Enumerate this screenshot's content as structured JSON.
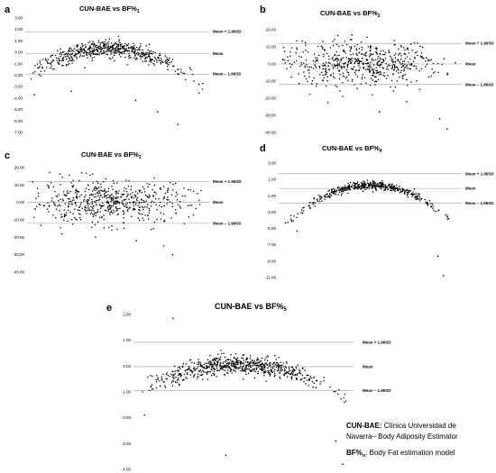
{
  "chart_data": [
    {
      "type": "scatter",
      "letter": "a",
      "title": "CUN-BAE vs BF%",
      "subscript": "1",
      "yticks": [
        "3.00",
        "2.00",
        "1.00",
        "0.00",
        "-1.00",
        "-2.00",
        "-3.00",
        "-4.00",
        "-5.00",
        "-6.00",
        "-7.00"
      ],
      "ylim": [
        -7,
        3
      ],
      "ref_lines": [
        {
          "label": "Mean + 1.96SD",
          "value": 1.8
        },
        {
          "label": "Mean",
          "value": -0.1
        },
        {
          "label": "Mean – 1.96SD",
          "value": -1.9
        }
      ],
      "cluster": {
        "x_center": 0.45,
        "y_center": 0.3,
        "spread_x": 0.22,
        "spread_y": 0.6,
        "count": 600
      },
      "outliers": [
        [
          0.05,
          -3.7
        ],
        [
          0.72,
          -5.2
        ],
        [
          0.83,
          -6.3
        ],
        [
          0.6,
          -4.2
        ],
        [
          0.25,
          -3.4
        ],
        [
          0.9,
          -1.5
        ]
      ]
    },
    {
      "type": "scatter",
      "letter": "b",
      "title": "CUN-BAE vs BF%",
      "subscript": "2",
      "yticks": [
        "20.00",
        "10.00",
        "0.00",
        "-10.00",
        "-20.00",
        "-30.00",
        "-40.00"
      ],
      "ylim": [
        -40,
        20
      ],
      "ref_lines": [
        {
          "label": "Mean + 1.96SD",
          "value": 12
        },
        {
          "label": "Mean",
          "value": 0
        },
        {
          "label": "Mean – 1.96SD",
          "value": -12
        }
      ],
      "cluster": {
        "x_center": 0.45,
        "y_center": 0,
        "spread_x": 0.22,
        "spread_y": 6,
        "count": 600
      },
      "outliers": [
        [
          0.92,
          -38
        ],
        [
          0.88,
          -32
        ],
        [
          0.7,
          -22
        ],
        [
          0.55,
          -28
        ],
        [
          0.4,
          17
        ]
      ]
    },
    {
      "type": "scatter",
      "letter": "c",
      "title": "CUN-BAE vs BF%",
      "subscript": "3",
      "yticks": [
        "20.00",
        "10.00",
        "0.00",
        "-10.00",
        "-20.00",
        "-30.00",
        "-40.00"
      ],
      "ylim": [
        -40,
        20
      ],
      "ref_lines": [
        {
          "label": "Mean + 1.96SD",
          "value": 12
        },
        {
          "label": "Mean",
          "value": 0
        },
        {
          "label": "Mean – 1.96SD",
          "value": -12
        }
      ],
      "cluster": {
        "x_center": 0.45,
        "y_center": 0,
        "spread_x": 0.22,
        "spread_y": 6,
        "count": 600
      },
      "outliers": [
        [
          0.8,
          -30
        ],
        [
          0.75,
          -25
        ],
        [
          0.6,
          -22
        ],
        [
          0.3,
          17
        ]
      ]
    },
    {
      "type": "scatter",
      "letter": "d",
      "title": "CUN-BAE vs BF%",
      "subscript": "4",
      "yticks": [
        "3.00",
        "1.00",
        "-1.00",
        "-3.00",
        "-5.00",
        "-7.00",
        "-9.00",
        "-11.00"
      ],
      "ylim": [
        -11,
        3
      ],
      "ref_lines": [
        {
          "label": "Mean + 1.96SD",
          "value": 1.7
        },
        {
          "label": "Mean",
          "value": -0.1
        },
        {
          "label": "Mean – 1.96SD",
          "value": -1.9
        }
      ],
      "cluster": {
        "x_center": 0.5,
        "y_center": 0.3,
        "spread_x": 0.2,
        "spread_y": 0.4,
        "count": 500
      },
      "outliers": [
        [
          0.87,
          -8.4
        ],
        [
          0.9,
          -10.8
        ],
        [
          0.1,
          -5.3
        ]
      ]
    },
    {
      "type": "scatter",
      "letter": "e",
      "title": "CUN-BAE vs BF%",
      "subscript": "5",
      "yticks": [
        "2.00",
        "1.00",
        "0.00",
        "-1.00",
        "-2.00",
        "-3.00",
        "-4.00"
      ],
      "ylim": [
        -4,
        2
      ],
      "ref_lines": [
        {
          "label": "Mean + 1.96SD",
          "value": 0.92
        },
        {
          "label": "Mean",
          "value": -0.02
        },
        {
          "label": "Mean – 1.96SD",
          "value": -0.95
        }
      ],
      "cluster": {
        "x_center": 0.48,
        "y_center": 0.05,
        "spread_x": 0.2,
        "spread_y": 0.3,
        "count": 700
      },
      "outliers": [
        [
          0.18,
          1.85
        ],
        [
          0.92,
          -2.9
        ],
        [
          0.95,
          -3.8
        ],
        [
          0.42,
          -3.45
        ],
        [
          0.05,
          -1.9
        ]
      ]
    }
  ],
  "legend": {
    "line1_bold": "CUN-BAE:",
    "line1_rest": " Clínica Universidad de",
    "line2": "Navarra– Body Adiposity Estimator",
    "line3_bold": "BF%",
    "line3_sub": "n",
    "line3_rest": ": Body Fat estimation model"
  }
}
